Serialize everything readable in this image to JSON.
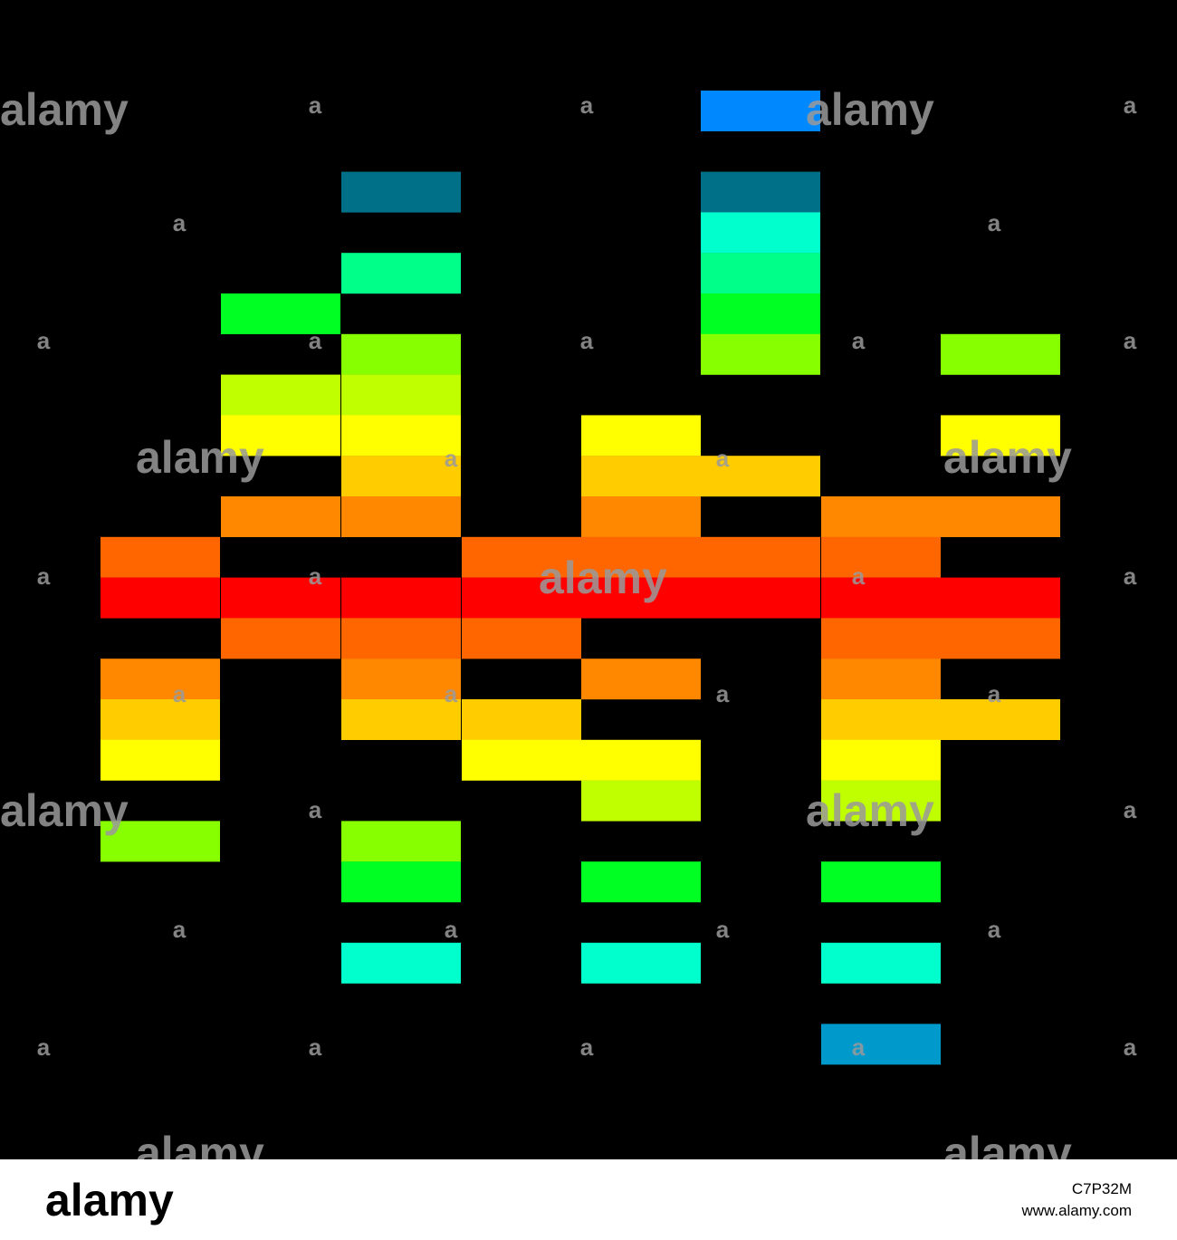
{
  "watermark": "alamy",
  "watermark_small": "a",
  "footer": {
    "logo": "alamy",
    "image_id": "C7P32M",
    "url": "www.alamy.com"
  }
}
